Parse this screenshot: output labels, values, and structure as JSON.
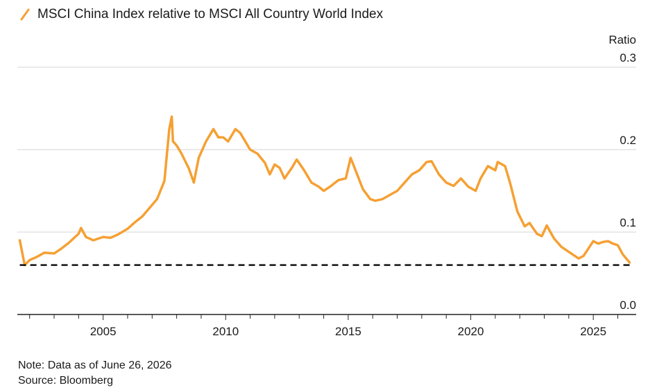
{
  "chart_data": {
    "type": "line",
    "series": [
      {
        "name": "MSCI China Index relative to MSCI All Country World Index",
        "color": "#f5a033",
        "x": [
          2001.6,
          2001.8,
          2002.0,
          2002.3,
          2002.6,
          2003.0,
          2003.3,
          2003.6,
          2004.0,
          2004.1,
          2004.3,
          2004.6,
          2005.0,
          2005.3,
          2005.6,
          2006.0,
          2006.3,
          2006.6,
          2007.0,
          2007.2,
          2007.5,
          2007.7,
          2007.8,
          2007.85,
          2008.0,
          2008.2,
          2008.5,
          2008.7,
          2008.9,
          2009.2,
          2009.5,
          2009.7,
          2009.9,
          2010.1,
          2010.4,
          2010.6,
          2010.8,
          2011.0,
          2011.3,
          2011.6,
          2011.8,
          2012.0,
          2012.2,
          2012.4,
          2012.7,
          2012.9,
          2013.2,
          2013.5,
          2013.8,
          2014.0,
          2014.3,
          2014.6,
          2014.9,
          2015.1,
          2015.3,
          2015.6,
          2015.9,
          2016.1,
          2016.4,
          2016.7,
          2017.0,
          2017.3,
          2017.6,
          2017.9,
          2018.2,
          2018.4,
          2018.7,
          2019.0,
          2019.3,
          2019.6,
          2019.9,
          2020.2,
          2020.4,
          2020.7,
          2021.0,
          2021.1,
          2021.4,
          2021.6,
          2021.9,
          2022.2,
          2022.4,
          2022.7,
          2022.9,
          2023.1,
          2023.4,
          2023.7,
          2024.0,
          2024.2,
          2024.4,
          2024.6,
          2024.8,
          2025.0,
          2025.2,
          2025.4,
          2025.6,
          2025.8,
          2026.0,
          2026.2,
          2026.48
        ],
        "values": [
          0.09,
          0.06,
          0.066,
          0.07,
          0.075,
          0.074,
          0.08,
          0.087,
          0.098,
          0.105,
          0.094,
          0.09,
          0.094,
          0.093,
          0.097,
          0.104,
          0.112,
          0.119,
          0.133,
          0.14,
          0.162,
          0.225,
          0.24,
          0.21,
          0.205,
          0.195,
          0.177,
          0.16,
          0.19,
          0.21,
          0.225,
          0.215,
          0.215,
          0.21,
          0.225,
          0.22,
          0.21,
          0.2,
          0.195,
          0.184,
          0.17,
          0.182,
          0.178,
          0.165,
          0.178,
          0.188,
          0.175,
          0.16,
          0.155,
          0.15,
          0.156,
          0.163,
          0.165,
          0.19,
          0.175,
          0.152,
          0.14,
          0.138,
          0.14,
          0.145,
          0.15,
          0.16,
          0.17,
          0.175,
          0.185,
          0.186,
          0.17,
          0.16,
          0.156,
          0.165,
          0.155,
          0.15,
          0.165,
          0.18,
          0.175,
          0.185,
          0.18,
          0.16,
          0.125,
          0.107,
          0.111,
          0.098,
          0.095,
          0.108,
          0.092,
          0.082,
          0.076,
          0.072,
          0.068,
          0.071,
          0.08,
          0.089,
          0.086,
          0.088,
          0.089,
          0.086,
          0.084,
          0.073,
          0.063
        ]
      }
    ],
    "reference_line": {
      "y": 0.06,
      "color": "#111111",
      "style": "dashed"
    },
    "ylabel": "Ratio",
    "ylim": [
      0.0,
      0.3
    ],
    "yticks": [
      0.3,
      0.2,
      0.1,
      0.0
    ],
    "ytick_labels": [
      "0.3",
      "0.2",
      "0.1",
      "0.0"
    ],
    "xlim": [
      2001.5,
      2026.75
    ],
    "xticks": [
      2005,
      2010,
      2015,
      2020,
      2025
    ],
    "xtick_labels": [
      "2005",
      "2010",
      "2015",
      "2020",
      "2025"
    ],
    "x_minor_ticks": [
      2002,
      2003,
      2004,
      2006,
      2007,
      2008,
      2009,
      2011,
      2012,
      2013,
      2014,
      2016,
      2017,
      2018,
      2019,
      2021,
      2022,
      2023,
      2024,
      2026
    ],
    "grid": true,
    "legend": "top-left"
  },
  "notes": {
    "note": "Note: Data as of June 26, 2026",
    "source": "Source: Bloomberg"
  }
}
